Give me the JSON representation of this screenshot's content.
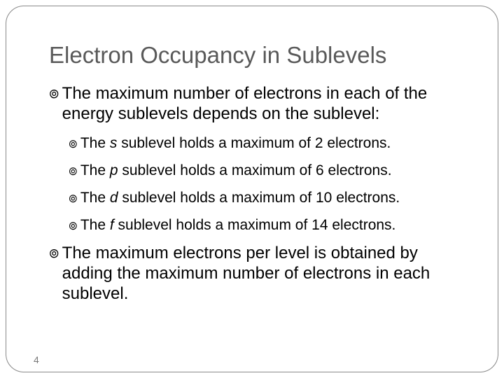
{
  "title": "Electron Occupancy in Sublevels",
  "bullets": {
    "b1": "The maximum number of electrons in each of the energy sublevels depends on the sublevel:",
    "sub": {
      "s_pre": "The ",
      "s_mid": "s",
      "s_post": " sublevel holds a maximum of 2 electrons.",
      "p_pre": "The ",
      "p_mid": "p",
      "p_post": " sublevel holds a maximum of 6 electrons.",
      "d_pre": "The ",
      "d_mid": "d",
      "d_post": " sublevel holds a maximum of 10 electrons.",
      "f_pre": "The ",
      "f_mid": "f",
      "f_post": " sublevel holds a maximum of 14 electrons."
    },
    "b2": "The maximum electrons per level is obtained by adding the maximum number of electrons in each sublevel."
  },
  "bullet_marker": "་",
  "page_number": "4"
}
